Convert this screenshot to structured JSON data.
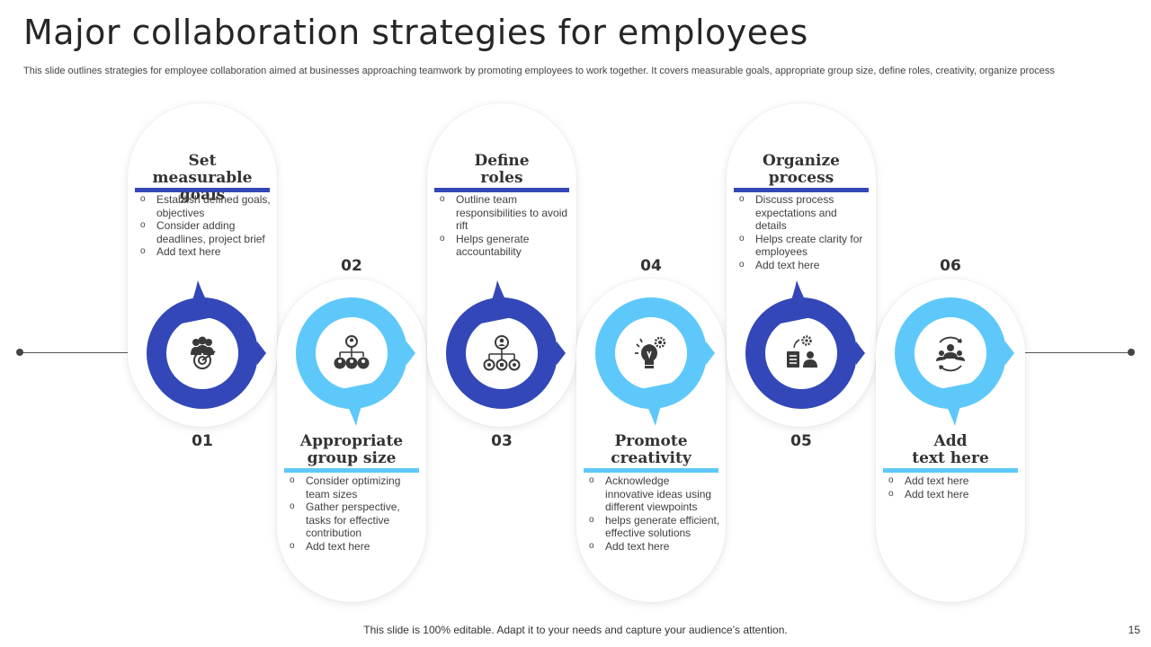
{
  "title": "Major collaboration  strategies for employees",
  "subtitle": "This slide outlines strategies for employee collaboration aimed at businesses approaching teamwork by promoting employees to work together. It covers measurable goals, appropriate group size, define roles, creativity, organize process",
  "footer": "This slide is 100% editable. Adapt it to your needs and capture your audience’s attention.",
  "page_number": "15",
  "colors": {
    "dark_blue": "#3347b8",
    "light_blue": "#5ec8fa",
    "line": "#555555"
  },
  "steps": [
    {
      "number": "01",
      "heading": "Set\nmeasurable goals",
      "icon": "target-team-icon",
      "bullets": [
        "Establish defined goals, objectives",
        "Consider adding deadlines, project brief",
        "Add text here"
      ]
    },
    {
      "number": "02",
      "heading": "Appropriate\ngroup size",
      "icon": "org-chart-icon",
      "bullets": [
        "Consider optimizing team sizes",
        "Gather perspective, tasks for effective contribution",
        "Add text here"
      ]
    },
    {
      "number": "03",
      "heading": "Define\nroles",
      "icon": "role-network-icon",
      "bullets": [
        "Outline team responsibilities to avoid rift",
        "Helps generate accountability"
      ]
    },
    {
      "number": "04",
      "heading": "Promote\ncreativity",
      "icon": "lightbulb-gear-icon",
      "bullets": [
        "Acknowledge innovative ideas using different viewpoints",
        " helps generate efficient, effective solutions",
        "Add text here"
      ]
    },
    {
      "number": "05",
      "heading": "Organize\nprocess",
      "icon": "process-checklist-icon",
      "bullets": [
        "Discuss process expectations and details",
        "Helps create clarity for employees",
        "Add text here"
      ]
    },
    {
      "number": "06",
      "heading": "Add\ntext here",
      "icon": "team-cycle-icon",
      "bullets": [
        "Add text here",
        "Add text here"
      ]
    }
  ]
}
